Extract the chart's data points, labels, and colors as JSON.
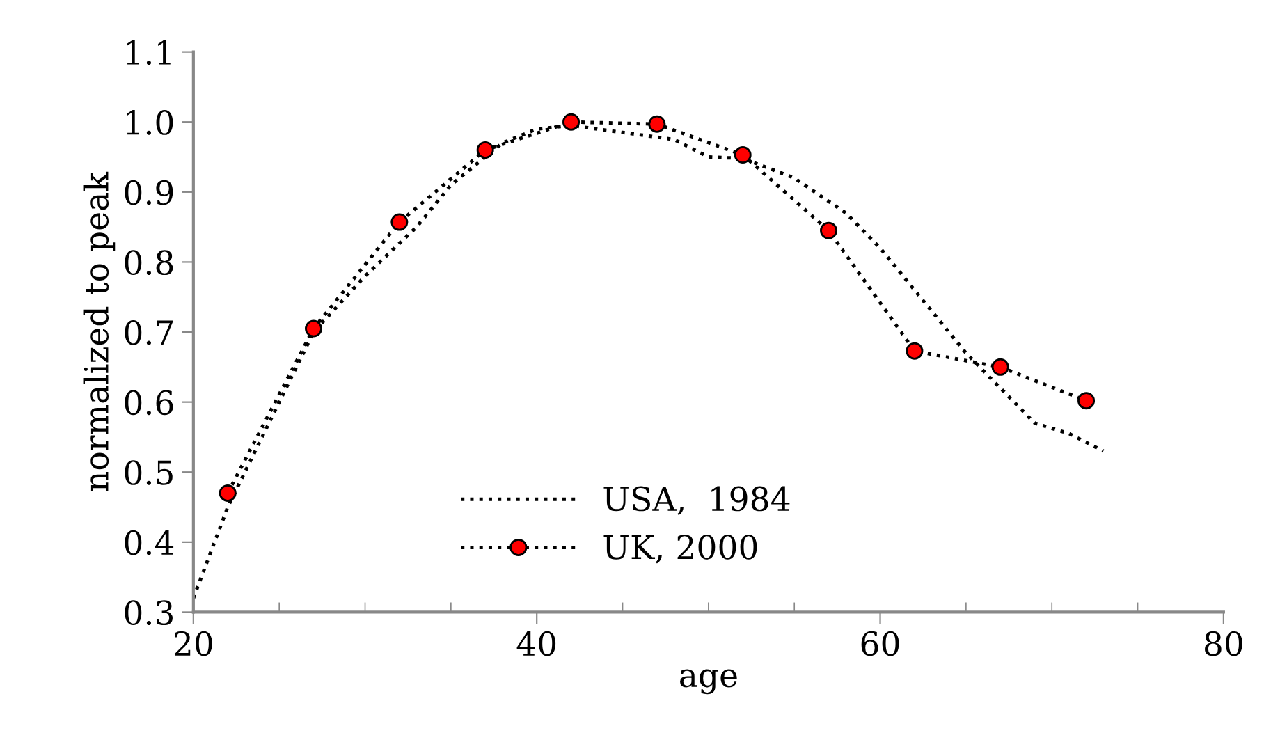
{
  "chart_data": {
    "type": "line",
    "xlabel": "age",
    "ylabel": "normalized to peak",
    "xlim": [
      20,
      80
    ],
    "xticks": [
      20,
      40,
      60,
      80
    ],
    "ylim": [
      0.3,
      1.1
    ],
    "yticks": [
      0.3,
      0.4,
      0.5,
      0.6,
      0.7,
      0.8,
      0.9,
      {
        "value": 1,
        "label": "1.0"
      },
      1.1
    ],
    "legend": "bottom",
    "grid": false,
    "line_style": "dotted",
    "series": [
      {
        "name": "USA,  1984",
        "color": "#000000",
        "marker": "none",
        "x": [
          20,
          22,
          25,
          27,
          30,
          33,
          35,
          38,
          40,
          42,
          45,
          48,
          50,
          52,
          55,
          58,
          60,
          62,
          65,
          67,
          69,
          71,
          73
        ],
        "values": [
          0.32,
          0.45,
          0.6,
          0.7,
          0.78,
          0.85,
          0.91,
          0.97,
          0.99,
          0.995,
          0.985,
          0.975,
          0.95,
          0.948,
          0.92,
          0.87,
          0.82,
          0.76,
          0.67,
          0.62,
          0.57,
          0.555,
          0.53
        ]
      },
      {
        "color": "#000000",
        "marker": "none",
        "x": [
          22,
          27,
          32,
          37,
          42,
          47,
          52,
          57,
          62,
          67,
          72
        ],
        "values": [
          0.47,
          0.705,
          0.857,
          0.96,
          1.0,
          0.997,
          0.953,
          0.845,
          0.673,
          0.65,
          0.602
        ]
      },
      {
        "name": "UK, 2000",
        "type": "scatter",
        "color": "#ff0000",
        "marker": "circle",
        "x": [
          22,
          27,
          32,
          37,
          42,
          47,
          52,
          57,
          62,
          67,
          72
        ],
        "values": [
          0.47,
          0.705,
          0.857,
          0.96,
          1.0,
          0.997,
          0.953,
          0.845,
          0.673,
          0.65,
          0.602
        ]
      }
    ]
  }
}
